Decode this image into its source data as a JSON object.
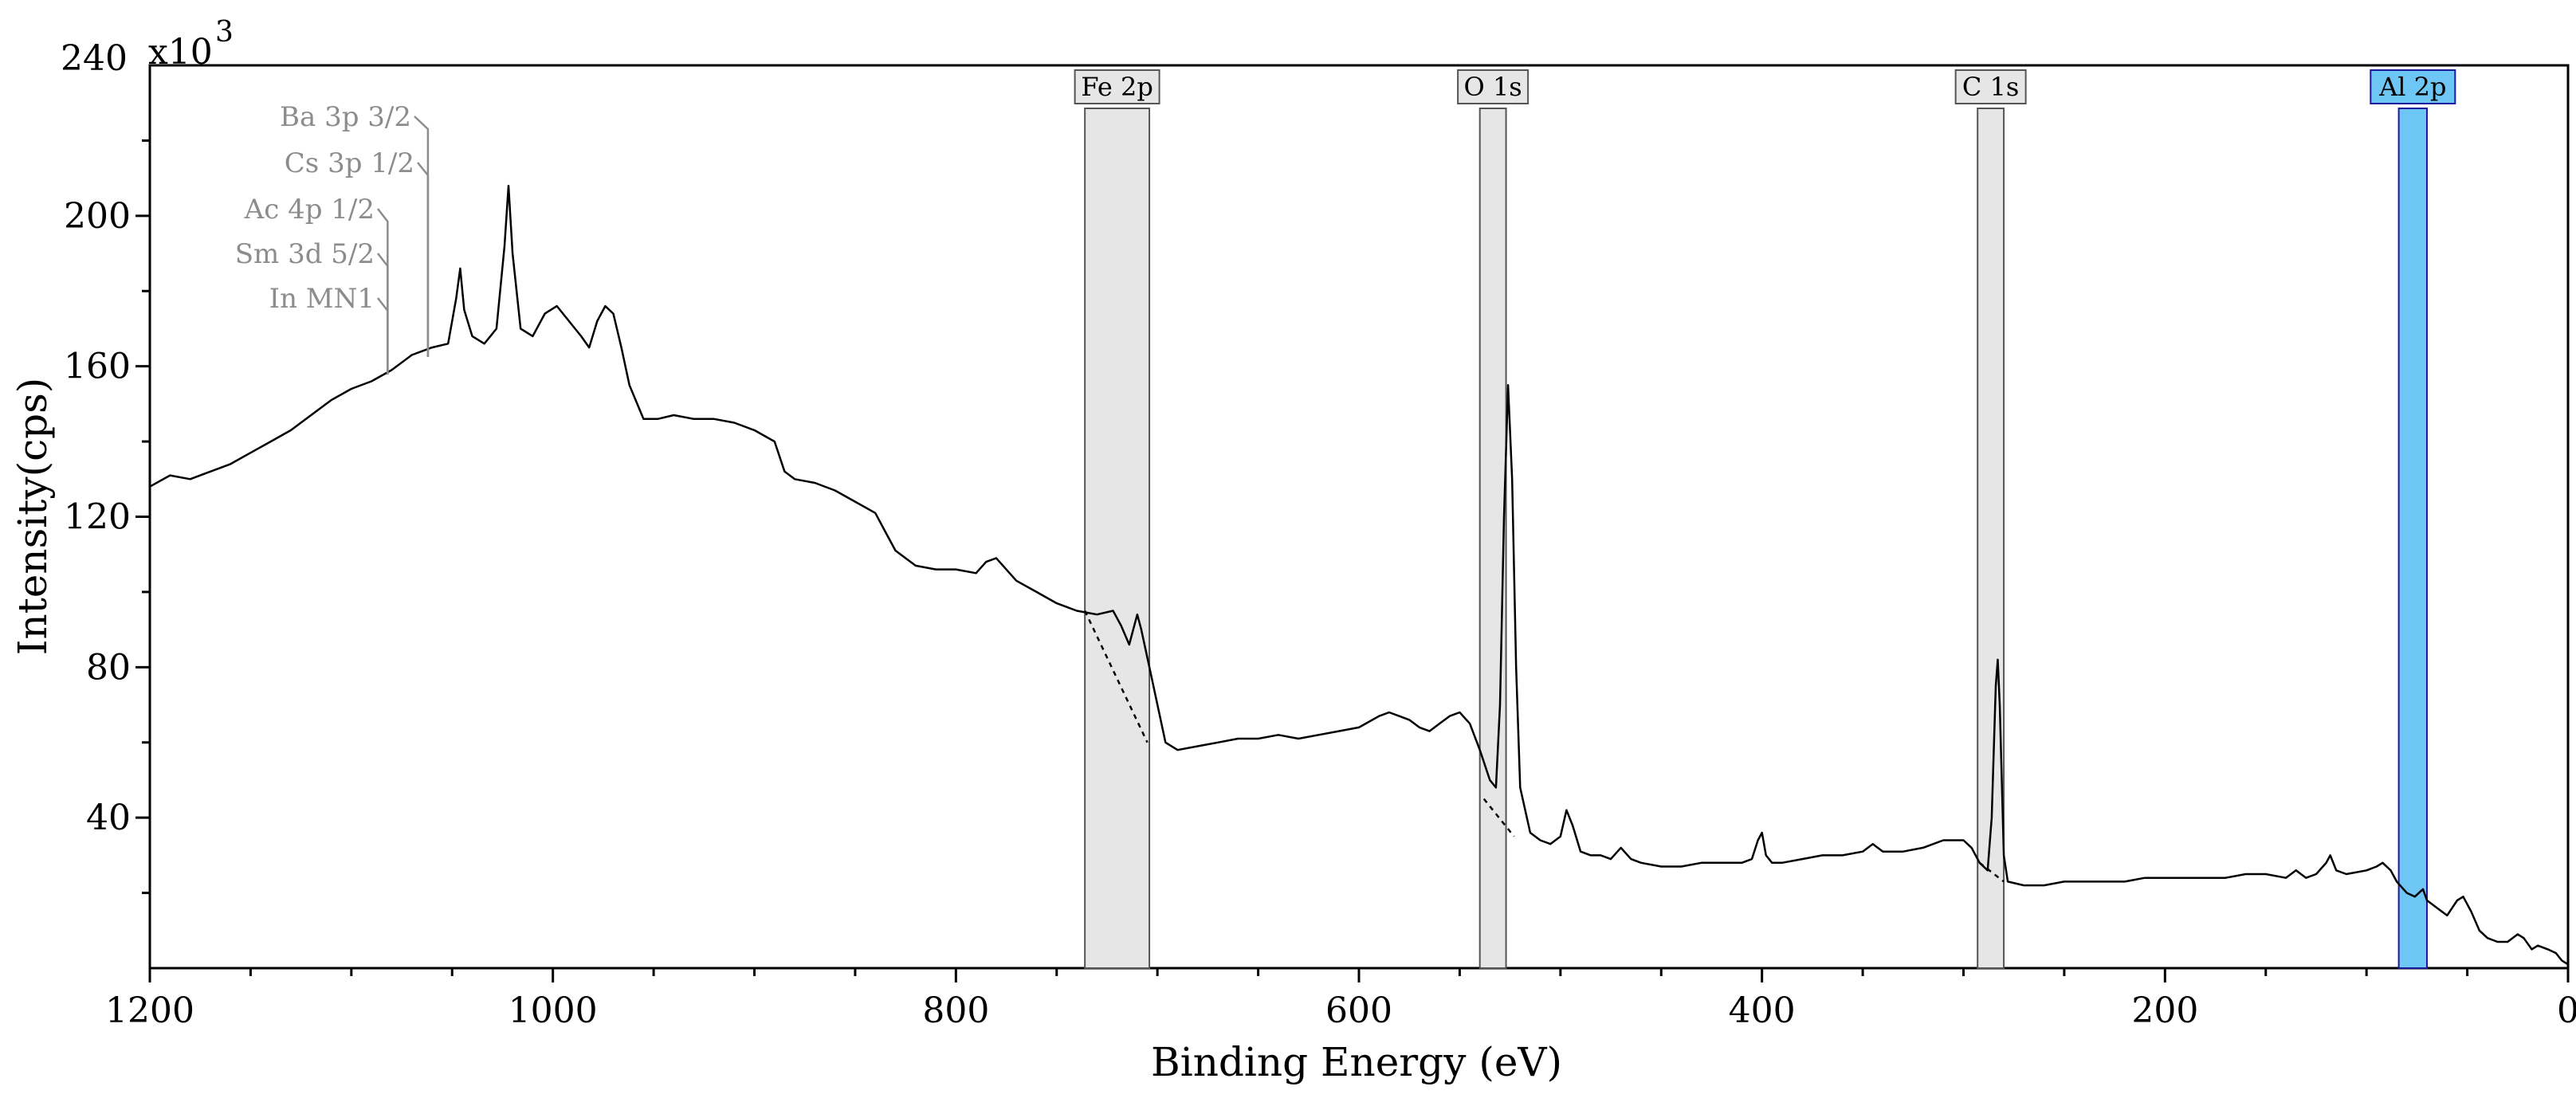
{
  "chart_data": {
    "type": "line",
    "title": "",
    "xlabel": "Binding Energy (eV)",
    "ylabel": "Intensity(cps)",
    "y_multiplier_label": "x10",
    "y_multiplier_exponent": "3",
    "xlim": [
      1200,
      0
    ],
    "ylim": [
      0,
      240
    ],
    "x_reversed": true,
    "x_ticks": [
      1200,
      1000,
      800,
      600,
      400,
      200,
      0
    ],
    "x_tick_labels": [
      "1200",
      "1000",
      "800",
      "600",
      "400",
      "200",
      "0"
    ],
    "y_ticks": [
      40,
      80,
      120,
      160,
      200,
      240
    ],
    "y_tick_labels": [
      "40",
      "80",
      "120",
      "160",
      "200",
      "240"
    ],
    "grid": false,
    "colors": {
      "line": "#000000",
      "region_fill": "#e6e6e6",
      "region_stroke": "#555555",
      "active_region_fill": "#6ec6f5",
      "active_region_stroke": "#1a1aa0",
      "annotation": "#8c8c8c"
    },
    "series": [
      {
        "values": [
          [
            1200,
            128
          ],
          [
            1190,
            131
          ],
          [
            1180,
            130
          ],
          [
            1170,
            132
          ],
          [
            1160,
            134
          ],
          [
            1150,
            137
          ],
          [
            1140,
            140
          ],
          [
            1130,
            143
          ],
          [
            1120,
            147
          ],
          [
            1110,
            151
          ],
          [
            1100,
            154
          ],
          [
            1090,
            156
          ],
          [
            1080,
            159
          ],
          [
            1070,
            163
          ],
          [
            1060,
            165
          ],
          [
            1052,
            166
          ],
          [
            1048,
            178
          ],
          [
            1046,
            186
          ],
          [
            1044,
            175
          ],
          [
            1040,
            168
          ],
          [
            1034,
            166
          ],
          [
            1028,
            170
          ],
          [
            1024,
            192
          ],
          [
            1022,
            208
          ],
          [
            1020,
            190
          ],
          [
            1016,
            170
          ],
          [
            1010,
            168
          ],
          [
            1004,
            174
          ],
          [
            998,
            176
          ],
          [
            992,
            172
          ],
          [
            986,
            168
          ],
          [
            982,
            165
          ],
          [
            978,
            172
          ],
          [
            974,
            176
          ],
          [
            970,
            174
          ],
          [
            966,
            165
          ],
          [
            962,
            155
          ],
          [
            955,
            146
          ],
          [
            948,
            146
          ],
          [
            940,
            147
          ],
          [
            930,
            146
          ],
          [
            920,
            146
          ],
          [
            910,
            145
          ],
          [
            900,
            143
          ],
          [
            890,
            140
          ],
          [
            885,
            132
          ],
          [
            880,
            130
          ],
          [
            870,
            129
          ],
          [
            860,
            127
          ],
          [
            850,
            124
          ],
          [
            840,
            121
          ],
          [
            835,
            116
          ],
          [
            830,
            111
          ],
          [
            820,
            107
          ],
          [
            810,
            106
          ],
          [
            800,
            106
          ],
          [
            790,
            105
          ],
          [
            785,
            108
          ],
          [
            780,
            109
          ],
          [
            775,
            106
          ],
          [
            770,
            103
          ],
          [
            760,
            100
          ],
          [
            750,
            97
          ],
          [
            740,
            95
          ],
          [
            730,
            94
          ],
          [
            722,
            95
          ],
          [
            718,
            91
          ],
          [
            714,
            86
          ],
          [
            712,
            90
          ],
          [
            710,
            94
          ],
          [
            708,
            90
          ],
          [
            704,
            80
          ],
          [
            700,
            70
          ],
          [
            696,
            60
          ],
          [
            690,
            58
          ],
          [
            680,
            59
          ],
          [
            670,
            60
          ],
          [
            660,
            61
          ],
          [
            650,
            61
          ],
          [
            640,
            62
          ],
          [
            630,
            61
          ],
          [
            620,
            62
          ],
          [
            610,
            63
          ],
          [
            600,
            64
          ],
          [
            590,
            67
          ],
          [
            585,
            68
          ],
          [
            580,
            67
          ],
          [
            575,
            66
          ],
          [
            570,
            64
          ],
          [
            565,
            63
          ],
          [
            560,
            65
          ],
          [
            555,
            67
          ],
          [
            550,
            68
          ],
          [
            545,
            65
          ],
          [
            540,
            58
          ],
          [
            535,
            50
          ],
          [
            532,
            48
          ],
          [
            530,
            70
          ],
          [
            528,
            120
          ],
          [
            526,
            155
          ],
          [
            524,
            130
          ],
          [
            522,
            80
          ],
          [
            520,
            48
          ],
          [
            515,
            36
          ],
          [
            510,
            34
          ],
          [
            505,
            33
          ],
          [
            500,
            35
          ],
          [
            497,
            42
          ],
          [
            494,
            38
          ],
          [
            490,
            31
          ],
          [
            485,
            30
          ],
          [
            480,
            30
          ],
          [
            475,
            29
          ],
          [
            470,
            32
          ],
          [
            465,
            29
          ],
          [
            460,
            28
          ],
          [
            450,
            27
          ],
          [
            440,
            27
          ],
          [
            430,
            28
          ],
          [
            420,
            28
          ],
          [
            410,
            28
          ],
          [
            405,
            29
          ],
          [
            402,
            34
          ],
          [
            400,
            36
          ],
          [
            398,
            30
          ],
          [
            395,
            28
          ],
          [
            390,
            28
          ],
          [
            380,
            29
          ],
          [
            370,
            30
          ],
          [
            360,
            30
          ],
          [
            350,
            31
          ],
          [
            345,
            33
          ],
          [
            340,
            31
          ],
          [
            330,
            31
          ],
          [
            320,
            32
          ],
          [
            310,
            34
          ],
          [
            300,
            34
          ],
          [
            296,
            32
          ],
          [
            292,
            28
          ],
          [
            288,
            26
          ],
          [
            286,
            40
          ],
          [
            284,
            75
          ],
          [
            283,
            82
          ],
          [
            282,
            70
          ],
          [
            280,
            30
          ],
          [
            278,
            23
          ],
          [
            270,
            22
          ],
          [
            260,
            22
          ],
          [
            250,
            23
          ],
          [
            240,
            23
          ],
          [
            230,
            23
          ],
          [
            220,
            23
          ],
          [
            210,
            24
          ],
          [
            200,
            24
          ],
          [
            190,
            24
          ],
          [
            180,
            24
          ],
          [
            170,
            24
          ],
          [
            160,
            25
          ],
          [
            150,
            25
          ],
          [
            140,
            24
          ],
          [
            135,
            26
          ],
          [
            130,
            24
          ],
          [
            125,
            25
          ],
          [
            120,
            28
          ],
          [
            118,
            30
          ],
          [
            115,
            26
          ],
          [
            110,
            25
          ],
          [
            100,
            26
          ],
          [
            95,
            27
          ],
          [
            92,
            28
          ],
          [
            88,
            26
          ],
          [
            85,
            23
          ],
          [
            80,
            20
          ],
          [
            76,
            19
          ],
          [
            74,
            20
          ],
          [
            72,
            21
          ],
          [
            70,
            18
          ],
          [
            65,
            16
          ],
          [
            60,
            14
          ],
          [
            55,
            18
          ],
          [
            52,
            19
          ],
          [
            48,
            15
          ],
          [
            44,
            10
          ],
          [
            40,
            8
          ],
          [
            35,
            7
          ],
          [
            30,
            7
          ],
          [
            25,
            9
          ],
          [
            22,
            8
          ],
          [
            18,
            5
          ],
          [
            15,
            6
          ],
          [
            10,
            5
          ],
          [
            6,
            4
          ],
          [
            3,
            2
          ],
          [
            0,
            1
          ]
        ]
      }
    ],
    "backgrounds": [
      {
        "x": [
          736,
          705
        ],
        "y": [
          95,
          60
        ]
      },
      {
        "x": [
          538,
          523
        ],
        "y": [
          45,
          35
        ]
      },
      {
        "x": [
          292,
          280
        ],
        "y": [
          28,
          23
        ]
      }
    ],
    "regions": [
      {
        "label": "Fe 2p",
        "x_start": 736,
        "x_end": 704,
        "active": false
      },
      {
        "label": "O 1s",
        "x_start": 540,
        "x_end": 527,
        "active": false
      },
      {
        "label": "C 1s",
        "x_start": 293,
        "x_end": 280,
        "active": false
      },
      {
        "label": "Al 2p",
        "x_start": 84,
        "x_end": 70,
        "active": true
      }
    ],
    "annotations": [
      {
        "label": "Ba 3p 3/2",
        "x": 1062
      },
      {
        "label": "Cs 3p 1/2",
        "x": 1062
      },
      {
        "label": "Ac 4p 1/2",
        "x": 1082
      },
      {
        "label": "Sm 3d 5/2",
        "x": 1082
      },
      {
        "label": "In MN1",
        "x": 1082
      }
    ]
  }
}
